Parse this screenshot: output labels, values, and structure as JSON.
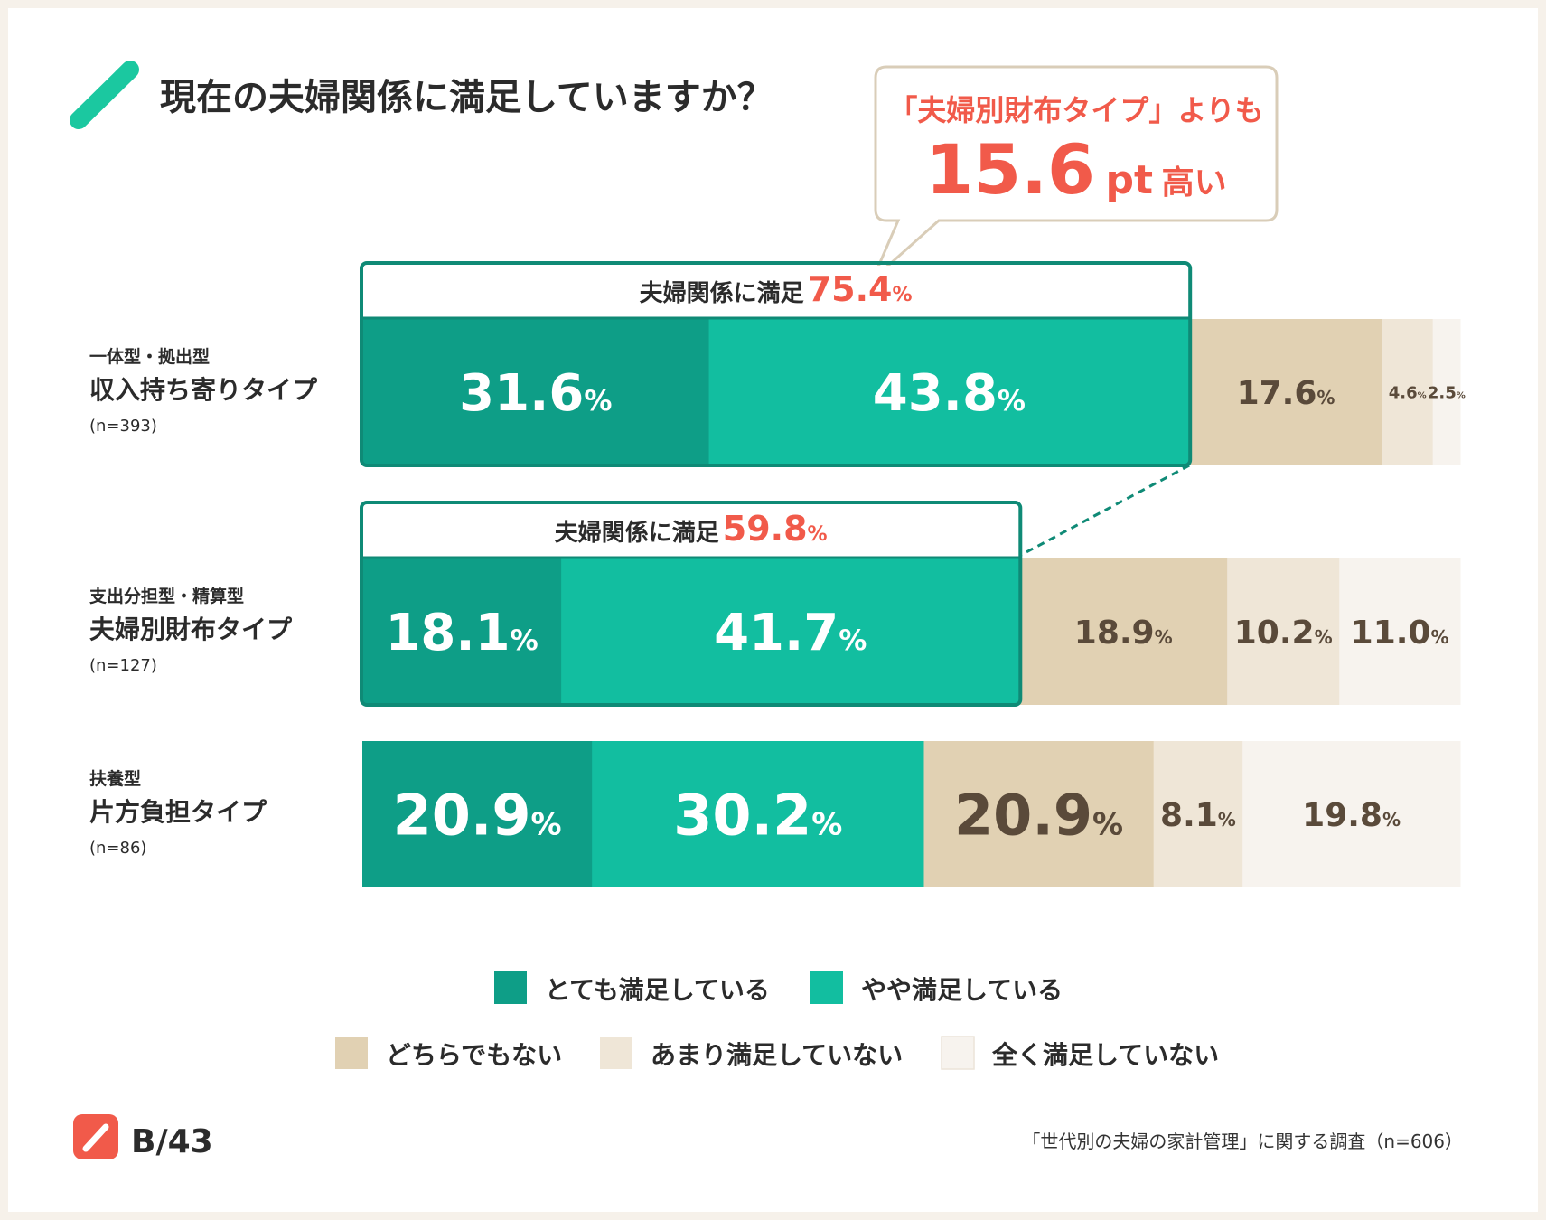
{
  "colors": {
    "very_satisfied": "#0e9e87",
    "somewhat_satisfied": "#12bea0",
    "neither": "#e1d1b3",
    "not_very": "#efe6d7",
    "not_at_all": "#f7f3ee",
    "accent_red": "#f15a4a",
    "teal_border": "#0f8a76",
    "callout_border": "#d9cdb8"
  },
  "title": "現在の夫婦関係に満足していますか？",
  "callout": {
    "line1": "「夫婦別財布タイプ」よりも",
    "value": "15.6",
    "unit": "pt",
    "suffix": "高い"
  },
  "chart_data": {
    "type": "bar",
    "orientation": "horizontal-stacked-100",
    "title": "現在の夫婦関係に満足していますか？",
    "legend_position": "bottom",
    "series_names": [
      "とても満足している",
      "やや満足している",
      "どちらでもない",
      "あまり満足していない",
      "全く満足していない"
    ],
    "rows": [
      {
        "sub": "一体型・拠出型",
        "name": "収入持ち寄りタイプ",
        "n": "(n=393)",
        "values": [
          31.6,
          43.8,
          17.6,
          4.6,
          2.5
        ],
        "satisfied_label": "夫婦関係に満足",
        "satisfied_total": "75.4"
      },
      {
        "sub": "支出分担型・精算型",
        "name": "夫婦別財布タイプ",
        "n": "(n=127)",
        "values": [
          18.1,
          41.7,
          18.9,
          10.2,
          11.0
        ],
        "satisfied_label": "夫婦関係に満足",
        "satisfied_total": "59.8"
      },
      {
        "sub": "扶養型",
        "name": "片方負担タイプ",
        "n": "(n=86)",
        "values": [
          20.9,
          30.2,
          20.9,
          8.1,
          19.8
        ]
      }
    ],
    "unit": "%"
  },
  "footer": {
    "logo_text": "B/43",
    "source": "「世代別の夫婦の家計管理」に関する調査（n=606）"
  }
}
